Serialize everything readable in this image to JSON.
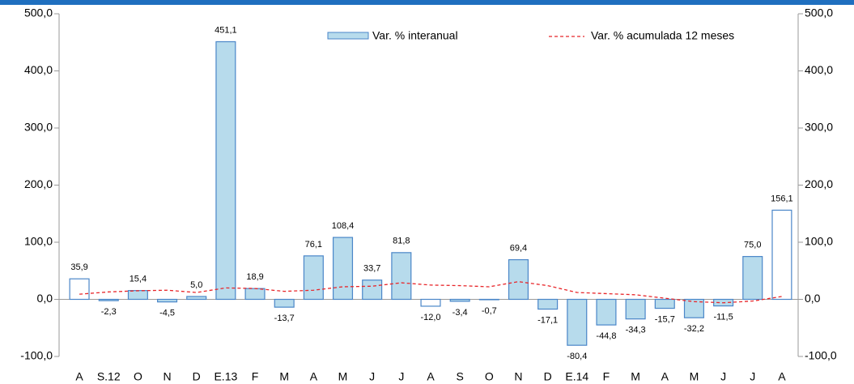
{
  "chart_data": {
    "type": "bar",
    "categories": [
      "A",
      "S.12",
      "O",
      "N",
      "D",
      "E.13",
      "F",
      "M",
      "A",
      "M",
      "J",
      "J",
      "A",
      "S",
      "O",
      "N",
      "D",
      "E.14",
      "F",
      "M",
      "A",
      "M",
      "J",
      "J",
      "A"
    ],
    "series": [
      {
        "name": "Var. % interanual",
        "type": "bar",
        "color": "#b7dbec",
        "edge": "#4a86c8",
        "colors": [
          "#ffffff",
          "#b7dbec",
          "#b7dbec",
          "#b7dbec",
          "#b7dbec",
          "#b7dbec",
          "#b7dbec",
          "#b7dbec",
          "#b7dbec",
          "#b7dbec",
          "#b7dbec",
          "#b7dbec",
          "#ffffff",
          "#b7dbec",
          "#b7dbec",
          "#b7dbec",
          "#b7dbec",
          "#b7dbec",
          "#b7dbec",
          "#b7dbec",
          "#b7dbec",
          "#b7dbec",
          "#b7dbec",
          "#b7dbec",
          "#ffffff"
        ],
        "values": [
          35.9,
          -2.3,
          15.4,
          -4.5,
          5.0,
          451.1,
          18.9,
          -13.7,
          76.1,
          108.4,
          33.7,
          81.8,
          -12.0,
          -3.4,
          -0.7,
          69.4,
          -17.1,
          -80.4,
          -44.8,
          -34.3,
          -15.7,
          -32.2,
          -11.5,
          75.0,
          156.1
        ],
        "value_labels": [
          "35,9",
          "-2,3",
          "15,4",
          "-4,5",
          "5,0",
          "451,1",
          "18,9",
          "-13,7",
          "76,1",
          "108,4",
          "33,7",
          "81,8",
          "-12,0",
          "-3,4",
          "-0,7",
          "69,4",
          "-17,1",
          "-80,4",
          "-44,8",
          "-34,3",
          "-15,7",
          "-32,2",
          "-11,5",
          "75,0",
          "156,1"
        ]
      },
      {
        "name": "Var. % acumulada 12 meses",
        "type": "line",
        "color": "#e8262a",
        "dashed": true,
        "values": [
          9,
          13,
          15,
          16,
          12,
          20,
          19,
          14,
          16,
          22,
          23,
          29,
          25,
          24,
          22,
          31,
          24,
          12,
          10,
          8,
          2,
          -4,
          -6,
          -3,
          5
        ]
      }
    ],
    "ylim": [
      -100,
      500
    ],
    "yticks": [
      {
        "value": -100,
        "label": "-100,0"
      },
      {
        "value": 0,
        "label": "0,0"
      },
      {
        "value": 100,
        "label": "100,0"
      },
      {
        "value": 200,
        "label": "200,0"
      },
      {
        "value": 300,
        "label": "300,0"
      },
      {
        "value": 400,
        "label": "400,0"
      },
      {
        "value": 500,
        "label": "500,0"
      }
    ],
    "grid": false
  }
}
